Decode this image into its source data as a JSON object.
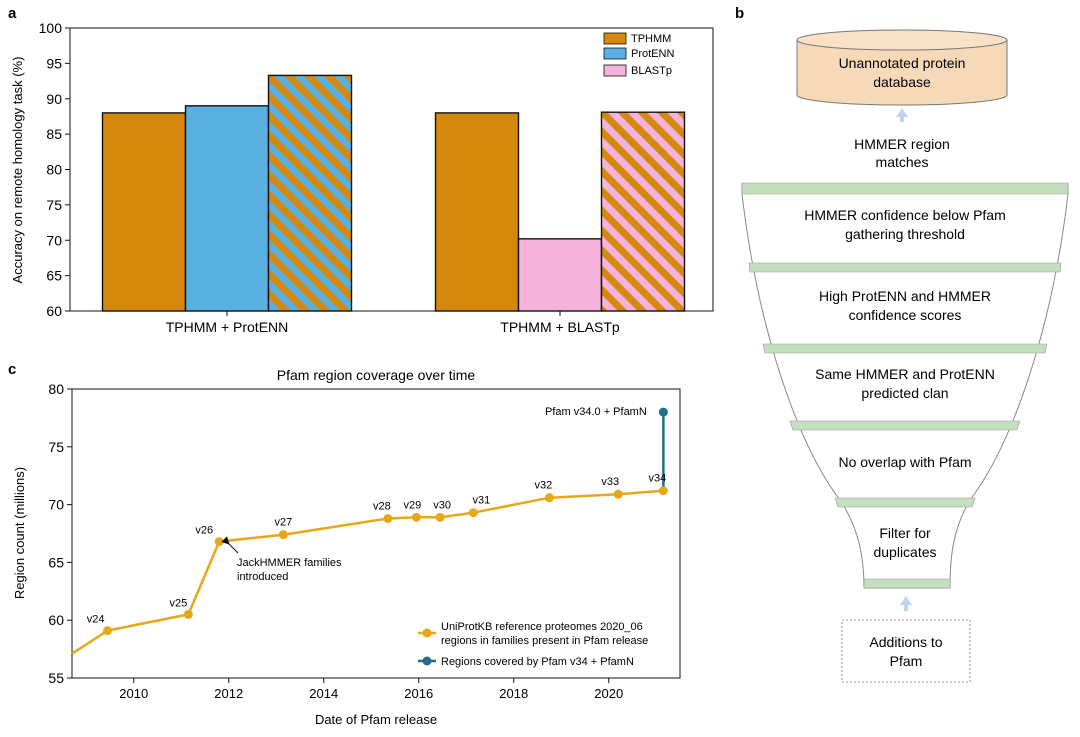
{
  "panels": {
    "a": {
      "label": "a",
      "chart_data": {
        "type": "bar",
        "categories": [
          "TPHMM + ProtENN",
          "TPHMM + BLASTp"
        ],
        "series": [
          {
            "name": "TPHMM",
            "values": [
              88.0,
              88.0
            ]
          },
          {
            "name": "ProtENN",
            "values": [
              89.0,
              null
            ]
          },
          {
            "name": "BLASTp",
            "values": [
              null,
              70.2
            ]
          },
          {
            "name": "",
            "values": [
              93.3,
              88.1
            ]
          }
        ],
        "combined_patterns": [
          "stripes TPHMM/ProtENN",
          "stripes TPHMM/BLASTp"
        ],
        "ylabel": "Accuracy on remote homology task (%)",
        "ylim": [
          60,
          100
        ],
        "yticks": [
          "60",
          "65",
          "70",
          "75",
          "80",
          "85",
          "90",
          "95",
          "100"
        ],
        "legend": [
          "TPHMM",
          "ProtENN",
          "BLASTp"
        ],
        "legend_position": "top-right",
        "grid": false
      }
    },
    "b": {
      "label": "b",
      "top_label": "Unannotated protein database",
      "top_lines": [
        "Unannotated protein",
        "database"
      ],
      "matches_lines": [
        "HMMER region",
        "matches"
      ],
      "filters": [
        {
          "lines": [
            "HMMER confidence below Pfam",
            "gathering threshold"
          ]
        },
        {
          "lines": [
            "High ProtENN and HMMER",
            "confidence scores"
          ]
        },
        {
          "lines": [
            "Same HMMER and ProtENN",
            "predicted clan"
          ]
        },
        {
          "lines": [
            "No overlap with Pfam"
          ]
        },
        {
          "lines": [
            "Filter for",
            "duplicates"
          ]
        }
      ],
      "bottom_lines": [
        "Additions to",
        "Pfam"
      ],
      "colors": {
        "database": "#f6d9b8",
        "band": "#c4dfc0",
        "arrow": "#bcd4ee"
      }
    },
    "c": {
      "label": "c",
      "chart_data": {
        "type": "line",
        "title": "Pfam region coverage over time",
        "xlabel": "Date of Pfam release",
        "ylabel": "Region count (millions)",
        "xlim": [
          2008.7,
          2021.5
        ],
        "ylim": [
          55,
          80
        ],
        "xticks": [
          "2010",
          "2012",
          "2014",
          "2016",
          "2018",
          "2020"
        ],
        "yticks": [
          "55",
          "60",
          "65",
          "70",
          "75",
          "80"
        ],
        "series": [
          {
            "name": "UniProtKB reference proteomes 2020_06 regions in families present in Pfam release",
            "x": [
              2008.7,
              2009.45,
              2011.15,
              2011.8,
              2013.15,
              2015.35,
              2015.95,
              2016.45,
              2017.15,
              2018.75,
              2020.2,
              2021.15
            ],
            "y": [
              57.1,
              59.1,
              60.5,
              66.8,
              67.4,
              68.8,
              68.9,
              68.9,
              69.3,
              70.6,
              70.9,
              71.2
            ],
            "labels": [
              "",
              "v24",
              "v25",
              "v26",
              "v27",
              "v28",
              "v29",
              "v30",
              "v31",
              "v32",
              "v33",
              "v34"
            ],
            "color": "#e6a817"
          },
          {
            "name": "Regions covered by Pfam v34 + PfamN",
            "x": [
              2021.15,
              2021.15
            ],
            "y": [
              71.2,
              78.0
            ],
            "color": "#1f6f8b"
          }
        ],
        "annotations": [
          {
            "text_lines": [
              "JackHMMER families",
              "introduced"
            ]
          },
          {
            "text_lines": [
              "Pfam v34.0 + PfamN"
            ]
          }
        ],
        "legend": [
          [
            "UniProtKB reference proteomes 2020_06",
            "regions in families present in Pfam release"
          ],
          [
            "Regions covered by Pfam v34 + PfamN"
          ]
        ],
        "legend_position": "bottom-right",
        "grid": false
      }
    }
  },
  "colors": {
    "tphmm": "#d4890c",
    "protenn": "#5ab0e0",
    "blastp": "#f4b2dd",
    "ink": "#111111"
  }
}
